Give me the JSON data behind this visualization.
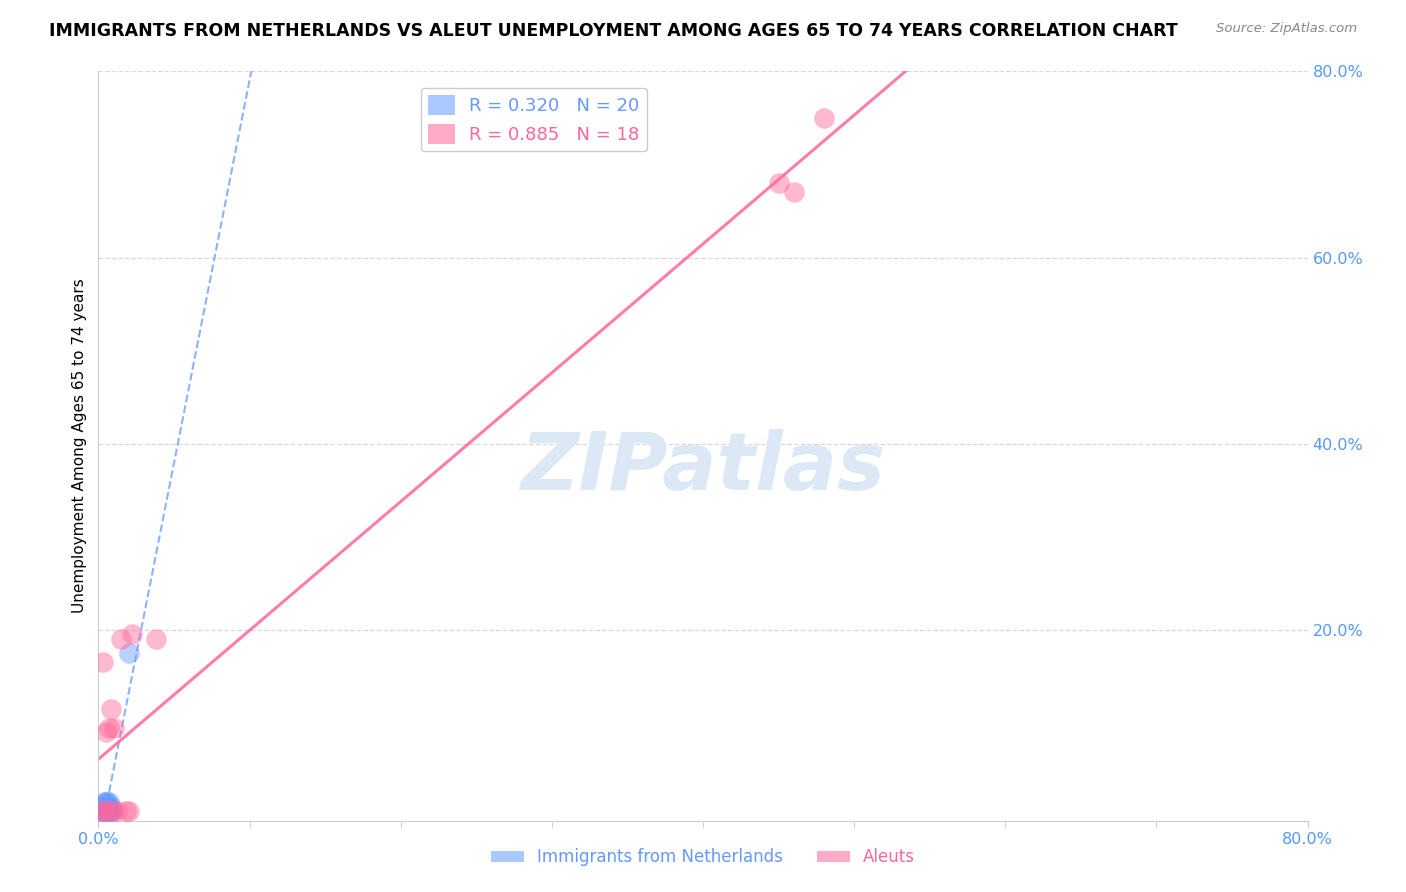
{
  "title": "IMMIGRANTS FROM NETHERLANDS VS ALEUT UNEMPLOYMENT AMONG AGES 65 TO 74 YEARS CORRELATION CHART",
  "source": "Source: ZipAtlas.com",
  "ylabel": "Unemployment Among Ages 65 to 74 years",
  "xlim": [
    0.0,
    0.8
  ],
  "ylim": [
    -0.005,
    0.8
  ],
  "blue_R": 0.32,
  "blue_N": 20,
  "pink_R": 0.885,
  "pink_N": 18,
  "legend_label_blue": "Immigrants from Netherlands",
  "legend_label_pink": "Aleuts",
  "blue_color": "#6699ff",
  "pink_color": "#ff6699",
  "blue_scatter_x": [
    0.002,
    0.002,
    0.003,
    0.003,
    0.004,
    0.004,
    0.004,
    0.005,
    0.005,
    0.005,
    0.006,
    0.006,
    0.006,
    0.007,
    0.007,
    0.007,
    0.008,
    0.008,
    0.009,
    0.02
  ],
  "blue_scatter_y": [
    0.005,
    0.01,
    0.005,
    0.01,
    0.005,
    0.01,
    0.015,
    0.005,
    0.01,
    0.015,
    0.005,
    0.01,
    0.015,
    0.005,
    0.01,
    0.015,
    0.005,
    0.01,
    0.005,
    0.175
  ],
  "pink_scatter_x": [
    0.002,
    0.003,
    0.004,
    0.005,
    0.006,
    0.007,
    0.008,
    0.009,
    0.01,
    0.012,
    0.015,
    0.018,
    0.02,
    0.022,
    0.038,
    0.45,
    0.46,
    0.48
  ],
  "pink_scatter_y": [
    0.005,
    0.165,
    0.005,
    0.09,
    0.005,
    0.095,
    0.115,
    0.005,
    0.095,
    0.005,
    0.19,
    0.005,
    0.005,
    0.195,
    0.19,
    0.68,
    0.67,
    0.75
  ],
  "blue_line_x": [
    0.0,
    0.35
  ],
  "blue_line_y_start": 0.035,
  "blue_line_y_end": 0.8,
  "pink_line_x": [
    0.0,
    0.8
  ],
  "pink_line_y_start": 0.08,
  "pink_line_y_end": 0.78,
  "watermark_color": "#dce8f5",
  "background_color": "#ffffff",
  "grid_color": "#d8d8d8",
  "ytick_vals": [
    0.2,
    0.4,
    0.6,
    0.8
  ],
  "ytick_labels": [
    "20.0%",
    "40.0%",
    "60.0%",
    "80.0%"
  ],
  "xtick_major": [
    0.0,
    0.8
  ],
  "xtick_minor": [
    0.1,
    0.2,
    0.3,
    0.4,
    0.5,
    0.6,
    0.7
  ],
  "axis_label_color": "#5599ff",
  "title_fontsize": 12.5,
  "tick_fontsize": 11.5
}
